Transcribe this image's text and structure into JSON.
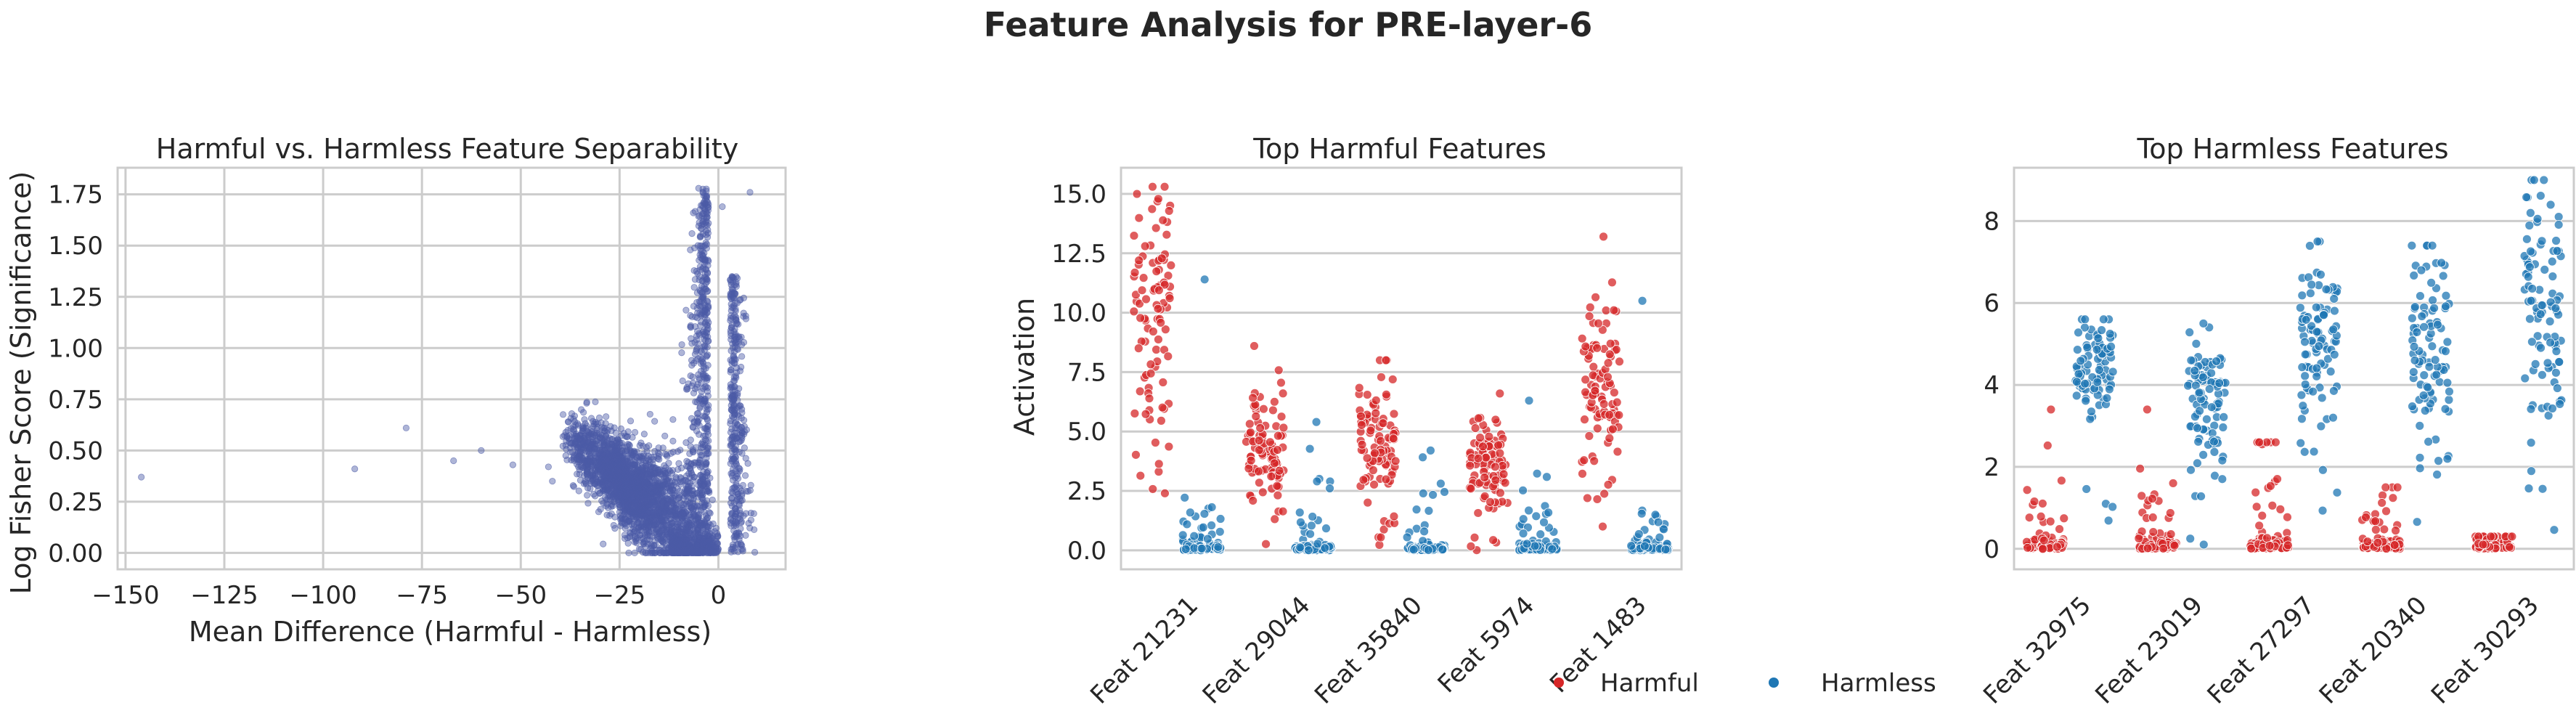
{
  "figure": {
    "suptitle": "Feature Analysis for PRE-layer-6"
  },
  "legend": {
    "items": [
      {
        "label": "Harmful",
        "color": "#d62728"
      },
      {
        "label": "Harmless",
        "color": "#1f77b4"
      }
    ],
    "placement": "bottom-center"
  },
  "chart_data": [
    {
      "type": "scatter",
      "title": "Harmful vs. Harmless Feature Separability",
      "xlabel": "Mean Difference (Harmful - Harmless)",
      "ylabel": "Log Fisher Score (Significance)",
      "xlim": [
        -152,
        17
      ],
      "ylim": [
        -0.08,
        1.88
      ],
      "xticks": [
        -150,
        -125,
        -100,
        -75,
        -50,
        -25,
        0
      ],
      "yticks": [
        0.0,
        0.25,
        0.5,
        0.75,
        1.0,
        1.25,
        1.5,
        1.75
      ],
      "xtick_labels": [
        "−150",
        "−125",
        "−100",
        "−75",
        "−50",
        "−25",
        "0"
      ],
      "ytick_labels": [
        "0.00",
        "0.25",
        "0.50",
        "0.75",
        "1.00",
        "1.25",
        "1.50",
        "1.75"
      ],
      "grid": true,
      "color": "#4c5ba6",
      "notable_points": [
        {
          "x": -146,
          "y": 0.37
        },
        {
          "x": -92,
          "y": 0.41
        },
        {
          "x": -79,
          "y": 0.61
        },
        {
          "x": -67,
          "y": 0.45
        },
        {
          "x": -60,
          "y": 0.5
        },
        {
          "x": -52,
          "y": 0.43
        },
        {
          "x": -43,
          "y": 0.42
        },
        {
          "x": -42,
          "y": 0.35
        },
        {
          "x": 8,
          "y": 1.76
        },
        {
          "x": -5,
          "y": 1.78
        },
        {
          "x": 1,
          "y": 1.69
        }
      ],
      "cluster": {
        "description_free": true,
        "left_edge_x": -40,
        "center_x": 0,
        "right_edge_x": 10,
        "base_y": 0.0,
        "peak_y_left_branch": 1.78,
        "peak_y_right_branch": 1.35
      }
    },
    {
      "type": "strip",
      "title": "Top Harmful Features",
      "ylabel": "Activation",
      "categories": [
        "Feat 21231",
        "Feat 29044",
        "Feat 35840",
        "Feat 5974",
        "Feat 1483"
      ],
      "ylim": [
        -0.8,
        16.1
      ],
      "yticks": [
        0.0,
        2.5,
        5.0,
        7.5,
        10.0,
        12.5,
        15.0
      ],
      "ytick_labels": [
        "0.0",
        "2.5",
        "5.0",
        "7.5",
        "10.0",
        "12.5",
        "15.0"
      ],
      "grid": true,
      "series": [
        {
          "name": "Harmful",
          "color": "#d62728",
          "centers": [
            10.2,
            4.7,
            4.4,
            3.6,
            6.5
          ],
          "spreads": [
            2.6,
            1.3,
            1.5,
            1.0,
            2.2
          ],
          "mins": [
            2.4,
            0.0,
            0.0,
            0.0,
            1.0
          ],
          "maxs": [
            15.3,
            8.6,
            8.0,
            6.6,
            13.2
          ]
        },
        {
          "name": "Harmless",
          "color": "#1f77b4",
          "centers": [
            0.0,
            0.5,
            0.2,
            0.0,
            0.0
          ],
          "spreads": [
            0.5,
            0.9,
            0.8,
            0.6,
            0.3
          ],
          "mins": [
            0.0,
            0.0,
            0.0,
            0.0,
            0.0
          ],
          "maxs": [
            11.4,
            5.4,
            4.2,
            6.3,
            10.5
          ]
        }
      ]
    },
    {
      "type": "strip",
      "title": "Top Harmless Features",
      "ylabel": "",
      "categories": [
        "Feat 32975",
        "Feat 23019",
        "Feat 27297",
        "Feat 20340",
        "Feat 30293"
      ],
      "ylim": [
        -0.5,
        9.3
      ],
      "yticks": [
        0,
        2,
        4,
        6,
        8
      ],
      "ytick_labels": [
        "0",
        "2",
        "4",
        "6",
        "8"
      ],
      "grid": true,
      "series": [
        {
          "name": "Harmful",
          "color": "#d62728",
          "centers": [
            0.0,
            0.0,
            0.4,
            0.0,
            0.0
          ],
          "spreads": [
            0.5,
            0.3,
            0.8,
            0.3,
            0.1
          ],
          "mins": [
            0.0,
            0.0,
            0.0,
            0.0,
            0.0
          ],
          "maxs": [
            3.4,
            3.4,
            2.6,
            1.5,
            0.3
          ]
        },
        {
          "name": "Harmless",
          "color": "#1f77b4",
          "centers": [
            4.4,
            3.7,
            5.0,
            5.0,
            6.0
          ],
          "spreads": [
            0.6,
            0.7,
            1.1,
            1.3,
            1.6
          ],
          "mins": [
            0.0,
            0.0,
            0.0,
            0.0,
            0.0
          ],
          "maxs": [
            5.6,
            5.5,
            7.5,
            7.4,
            9.0
          ]
        }
      ]
    }
  ]
}
